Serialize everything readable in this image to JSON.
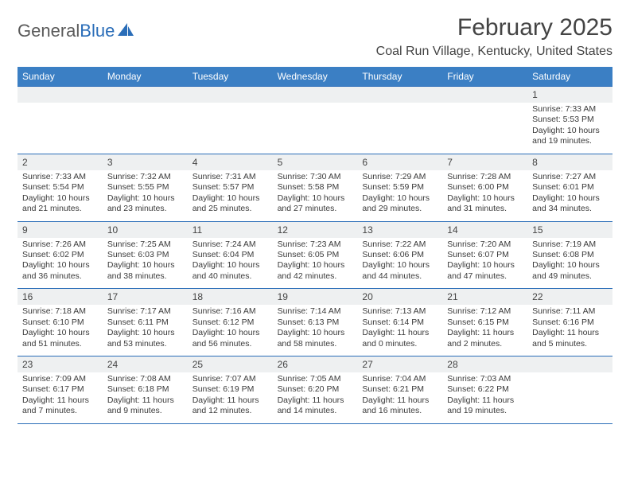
{
  "logo": {
    "word1": "General",
    "word2": "Blue"
  },
  "header": {
    "month_title": "February 2025",
    "location": "Coal Run Village, Kentucky, United States"
  },
  "colors": {
    "header_bar": "#3b7fc4",
    "daynum_bg": "#eef0f1",
    "rule": "#2a6db8",
    "logo_blue": "#2a6db8"
  },
  "days_of_week": [
    "Sunday",
    "Monday",
    "Tuesday",
    "Wednesday",
    "Thursday",
    "Friday",
    "Saturday"
  ],
  "weeks": [
    [
      {
        "n": "",
        "body": ""
      },
      {
        "n": "",
        "body": ""
      },
      {
        "n": "",
        "body": ""
      },
      {
        "n": "",
        "body": ""
      },
      {
        "n": "",
        "body": ""
      },
      {
        "n": "",
        "body": ""
      },
      {
        "n": "1",
        "body": "Sunrise: 7:33 AM\nSunset: 5:53 PM\nDaylight: 10 hours and 19 minutes."
      }
    ],
    [
      {
        "n": "2",
        "body": "Sunrise: 7:33 AM\nSunset: 5:54 PM\nDaylight: 10 hours and 21 minutes."
      },
      {
        "n": "3",
        "body": "Sunrise: 7:32 AM\nSunset: 5:55 PM\nDaylight: 10 hours and 23 minutes."
      },
      {
        "n": "4",
        "body": "Sunrise: 7:31 AM\nSunset: 5:57 PM\nDaylight: 10 hours and 25 minutes."
      },
      {
        "n": "5",
        "body": "Sunrise: 7:30 AM\nSunset: 5:58 PM\nDaylight: 10 hours and 27 minutes."
      },
      {
        "n": "6",
        "body": "Sunrise: 7:29 AM\nSunset: 5:59 PM\nDaylight: 10 hours and 29 minutes."
      },
      {
        "n": "7",
        "body": "Sunrise: 7:28 AM\nSunset: 6:00 PM\nDaylight: 10 hours and 31 minutes."
      },
      {
        "n": "8",
        "body": "Sunrise: 7:27 AM\nSunset: 6:01 PM\nDaylight: 10 hours and 34 minutes."
      }
    ],
    [
      {
        "n": "9",
        "body": "Sunrise: 7:26 AM\nSunset: 6:02 PM\nDaylight: 10 hours and 36 minutes."
      },
      {
        "n": "10",
        "body": "Sunrise: 7:25 AM\nSunset: 6:03 PM\nDaylight: 10 hours and 38 minutes."
      },
      {
        "n": "11",
        "body": "Sunrise: 7:24 AM\nSunset: 6:04 PM\nDaylight: 10 hours and 40 minutes."
      },
      {
        "n": "12",
        "body": "Sunrise: 7:23 AM\nSunset: 6:05 PM\nDaylight: 10 hours and 42 minutes."
      },
      {
        "n": "13",
        "body": "Sunrise: 7:22 AM\nSunset: 6:06 PM\nDaylight: 10 hours and 44 minutes."
      },
      {
        "n": "14",
        "body": "Sunrise: 7:20 AM\nSunset: 6:07 PM\nDaylight: 10 hours and 47 minutes."
      },
      {
        "n": "15",
        "body": "Sunrise: 7:19 AM\nSunset: 6:08 PM\nDaylight: 10 hours and 49 minutes."
      }
    ],
    [
      {
        "n": "16",
        "body": "Sunrise: 7:18 AM\nSunset: 6:10 PM\nDaylight: 10 hours and 51 minutes."
      },
      {
        "n": "17",
        "body": "Sunrise: 7:17 AM\nSunset: 6:11 PM\nDaylight: 10 hours and 53 minutes."
      },
      {
        "n": "18",
        "body": "Sunrise: 7:16 AM\nSunset: 6:12 PM\nDaylight: 10 hours and 56 minutes."
      },
      {
        "n": "19",
        "body": "Sunrise: 7:14 AM\nSunset: 6:13 PM\nDaylight: 10 hours and 58 minutes."
      },
      {
        "n": "20",
        "body": "Sunrise: 7:13 AM\nSunset: 6:14 PM\nDaylight: 11 hours and 0 minutes."
      },
      {
        "n": "21",
        "body": "Sunrise: 7:12 AM\nSunset: 6:15 PM\nDaylight: 11 hours and 2 minutes."
      },
      {
        "n": "22",
        "body": "Sunrise: 7:11 AM\nSunset: 6:16 PM\nDaylight: 11 hours and 5 minutes."
      }
    ],
    [
      {
        "n": "23",
        "body": "Sunrise: 7:09 AM\nSunset: 6:17 PM\nDaylight: 11 hours and 7 minutes."
      },
      {
        "n": "24",
        "body": "Sunrise: 7:08 AM\nSunset: 6:18 PM\nDaylight: 11 hours and 9 minutes."
      },
      {
        "n": "25",
        "body": "Sunrise: 7:07 AM\nSunset: 6:19 PM\nDaylight: 11 hours and 12 minutes."
      },
      {
        "n": "26",
        "body": "Sunrise: 7:05 AM\nSunset: 6:20 PM\nDaylight: 11 hours and 14 minutes."
      },
      {
        "n": "27",
        "body": "Sunrise: 7:04 AM\nSunset: 6:21 PM\nDaylight: 11 hours and 16 minutes."
      },
      {
        "n": "28",
        "body": "Sunrise: 7:03 AM\nSunset: 6:22 PM\nDaylight: 11 hours and 19 minutes."
      },
      {
        "n": "",
        "body": ""
      }
    ]
  ]
}
